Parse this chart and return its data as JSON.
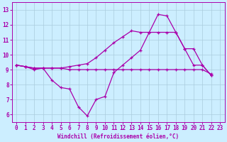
{
  "xlabel": "Windchill (Refroidissement éolien,°C)",
  "xlim": [
    -0.5,
    23.5
  ],
  "ylim": [
    5.5,
    13.5
  ],
  "xticks": [
    0,
    1,
    2,
    3,
    4,
    5,
    6,
    7,
    8,
    9,
    10,
    11,
    12,
    13,
    14,
    15,
    16,
    17,
    18,
    19,
    20,
    21,
    22,
    23
  ],
  "yticks": [
    6,
    7,
    8,
    9,
    10,
    11,
    12,
    13
  ],
  "background_color": "#cceeff",
  "grid_color": "#aaccdd",
  "line_color": "#aa00aa",
  "line1_x": [
    0,
    1,
    2,
    3,
    4,
    5,
    6,
    7,
    8,
    9,
    10,
    11,
    12,
    13,
    14,
    15,
    16,
    17,
    18,
    19,
    20,
    21,
    22
  ],
  "line1_y": [
    9.3,
    9.2,
    9.0,
    9.1,
    8.3,
    7.8,
    7.7,
    6.5,
    5.9,
    7.0,
    7.2,
    8.8,
    9.3,
    9.8,
    10.3,
    11.5,
    12.7,
    12.6,
    11.5,
    10.4,
    10.4,
    9.3,
    8.6
  ],
  "line2_x": [
    0,
    1,
    2,
    3,
    4,
    5,
    6,
    7,
    8,
    9,
    10,
    11,
    12,
    13,
    14,
    15,
    16,
    17,
    18,
    19,
    20,
    21,
    22
  ],
  "line2_y": [
    9.3,
    9.2,
    9.1,
    9.1,
    9.1,
    9.1,
    9.0,
    9.0,
    9.0,
    9.0,
    9.0,
    9.0,
    9.0,
    9.0,
    9.0,
    9.0,
    9.0,
    9.0,
    9.0,
    9.0,
    9.0,
    9.0,
    8.7
  ],
  "line3_x": [
    0,
    1,
    2,
    3,
    4,
    5,
    6,
    7,
    8,
    9,
    10,
    11,
    12,
    13,
    14,
    15,
    16,
    17,
    18,
    19,
    20,
    21,
    22
  ],
  "line3_y": [
    9.3,
    9.2,
    9.1,
    9.1,
    9.1,
    9.1,
    9.2,
    9.3,
    9.4,
    9.8,
    10.3,
    10.8,
    11.2,
    11.6,
    11.5,
    11.5,
    11.5,
    11.5,
    11.5,
    10.4,
    9.3,
    9.3,
    8.6
  ]
}
